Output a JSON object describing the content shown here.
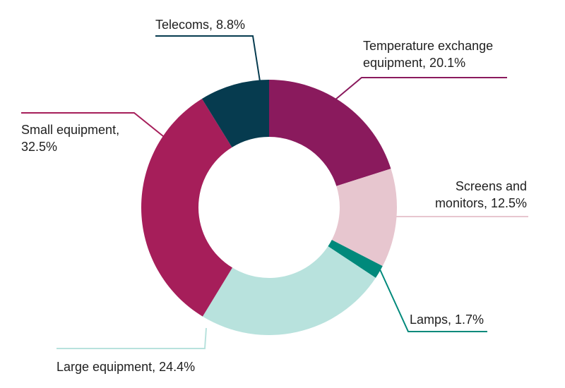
{
  "chart_data": {
    "type": "pie",
    "style": "donut",
    "title": "",
    "slices": [
      {
        "category": "Temperature exchange equipment",
        "value": 20.1,
        "label_lines": [
          "Temperature exchange",
          "equipment, 20.1%"
        ],
        "color": "#8a1a5d"
      },
      {
        "category": "Screens and monitors",
        "value": 12.5,
        "label_lines": [
          "Screens and",
          "monitors, 12.5%"
        ],
        "color": "#e7c6cf"
      },
      {
        "category": "Lamps",
        "value": 1.7,
        "label_lines": [
          "Lamps, 1.7%"
        ],
        "color": "#00897b"
      },
      {
        "category": "Large equipment",
        "value": 24.4,
        "label_lines": [
          "Large equipment, 24.4%"
        ],
        "color": "#b8e2dd"
      },
      {
        "category": "Small equipment",
        "value": 32.5,
        "label_lines": [
          "Small equipment,",
          "32.5%"
        ],
        "color": "#a61e5a"
      },
      {
        "category": "Telecoms",
        "value": 8.8,
        "label_lines": [
          "Telecoms, 8.8%"
        ],
        "color": "#063b4f"
      }
    ]
  }
}
